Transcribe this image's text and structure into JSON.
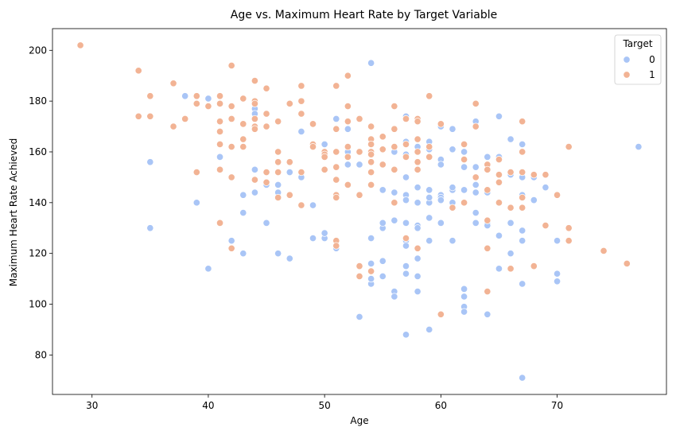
{
  "chart_data": {
    "type": "scatter",
    "title": "Age vs. Maximum Heart Rate by Target Variable",
    "xlabel": "Age",
    "ylabel": "Maximum Heart Rate Achieved",
    "xlim": [
      26.6,
      79.4
    ],
    "ylim": [
      64.45,
      208.55
    ],
    "xticks": [
      30,
      40,
      50,
      60,
      70
    ],
    "yticks": [
      80,
      100,
      120,
      140,
      160,
      180,
      200
    ],
    "grid": false,
    "legend": {
      "title": "Target",
      "placement": "top-right"
    },
    "series": [
      {
        "name": "0",
        "color": "#a9c5f6",
        "points": [
          [
            35,
            156
          ],
          [
            35,
            130
          ],
          [
            38,
            182
          ],
          [
            39,
            140
          ],
          [
            40,
            181
          ],
          [
            40,
            114
          ],
          [
            41,
            158
          ],
          [
            42,
            125
          ],
          [
            43,
            136
          ],
          [
            43,
            143
          ],
          [
            43,
            120
          ],
          [
            44,
            177
          ],
          [
            44,
            175
          ],
          [
            44,
            153
          ],
          [
            44,
            144
          ],
          [
            45,
            147
          ],
          [
            45,
            132
          ],
          [
            46,
            147
          ],
          [
            46,
            144
          ],
          [
            46,
            120
          ],
          [
            47,
            152
          ],
          [
            47,
            118
          ],
          [
            48,
            168
          ],
          [
            48,
            150
          ],
          [
            49,
            139
          ],
          [
            49,
            126
          ],
          [
            50,
            163
          ],
          [
            50,
            158
          ],
          [
            50,
            126
          ],
          [
            50,
            128
          ],
          [
            51,
            173
          ],
          [
            51,
            143
          ],
          [
            51,
            122
          ],
          [
            52,
            160
          ],
          [
            52,
            169
          ],
          [
            52,
            155
          ],
          [
            53,
            155
          ],
          [
            53,
            95
          ],
          [
            54,
            195
          ],
          [
            54,
            160
          ],
          [
            54,
            126
          ],
          [
            54,
            116
          ],
          [
            54,
            108
          ],
          [
            54,
            110
          ],
          [
            55,
            145
          ],
          [
            55,
            130
          ],
          [
            55,
            132
          ],
          [
            55,
            117
          ],
          [
            55,
            111
          ],
          [
            56,
            160
          ],
          [
            56,
            144
          ],
          [
            56,
            133
          ],
          [
            56,
            105
          ],
          [
            56,
            103
          ],
          [
            57,
            174
          ],
          [
            57,
            164
          ],
          [
            57,
            159
          ],
          [
            57,
            150
          ],
          [
            57,
            143
          ],
          [
            57,
            141
          ],
          [
            57,
            132
          ],
          [
            57,
            125
          ],
          [
            57,
            123
          ],
          [
            57,
            115
          ],
          [
            57,
            112
          ],
          [
            57,
            88
          ],
          [
            58,
            172
          ],
          [
            58,
            162
          ],
          [
            58,
            146
          ],
          [
            58,
            140
          ],
          [
            58,
            131
          ],
          [
            58,
            130
          ],
          [
            58,
            118
          ],
          [
            58,
            111
          ],
          [
            58,
            105
          ],
          [
            59,
            164
          ],
          [
            59,
            161
          ],
          [
            59,
            145
          ],
          [
            59,
            140
          ],
          [
            59,
            142
          ],
          [
            59,
            134
          ],
          [
            59,
            125
          ],
          [
            59,
            90
          ],
          [
            60,
            170
          ],
          [
            60,
            157
          ],
          [
            60,
            155
          ],
          [
            60,
            143
          ],
          [
            60,
            142
          ],
          [
            60,
            141
          ],
          [
            60,
            132
          ],
          [
            61,
            169
          ],
          [
            61,
            161
          ],
          [
            61,
            145
          ],
          [
            61,
            146
          ],
          [
            61,
            140
          ],
          [
            61,
            138
          ],
          [
            61,
            125
          ],
          [
            62,
            160
          ],
          [
            62,
            154
          ],
          [
            62,
            145
          ],
          [
            62,
            106
          ],
          [
            62,
            103
          ],
          [
            62,
            99
          ],
          [
            62,
            97
          ],
          [
            63,
            172
          ],
          [
            63,
            154
          ],
          [
            63,
            147
          ],
          [
            63,
            144
          ],
          [
            63,
            136
          ],
          [
            63,
            132
          ],
          [
            64,
            158
          ],
          [
            64,
            144
          ],
          [
            64,
            132
          ],
          [
            64,
            131
          ],
          [
            64,
            96
          ],
          [
            65,
            174
          ],
          [
            65,
            158
          ],
          [
            65,
            157
          ],
          [
            65,
            127
          ],
          [
            65,
            114
          ],
          [
            66,
            165
          ],
          [
            66,
            151
          ],
          [
            66,
            132
          ],
          [
            66,
            120
          ],
          [
            67,
            163
          ],
          [
            67,
            150
          ],
          [
            67,
            143
          ],
          [
            67,
            129
          ],
          [
            67,
            125
          ],
          [
            67,
            108
          ],
          [
            67,
            71
          ],
          [
            68,
            150
          ],
          [
            68,
            141
          ],
          [
            69,
            146
          ],
          [
            70,
            125
          ],
          [
            70,
            112
          ],
          [
            70,
            109
          ],
          [
            77,
            162
          ]
        ]
      },
      {
        "name": "1",
        "color": "#f2b394",
        "points": [
          [
            29,
            202
          ],
          [
            34,
            192
          ],
          [
            34,
            174
          ],
          [
            35,
            182
          ],
          [
            35,
            174
          ],
          [
            37,
            187
          ],
          [
            37,
            170
          ],
          [
            38,
            173
          ],
          [
            39,
            182
          ],
          [
            39,
            179
          ],
          [
            39,
            152
          ],
          [
            40,
            178
          ],
          [
            41,
            182
          ],
          [
            41,
            179
          ],
          [
            41,
            172
          ],
          [
            41,
            168
          ],
          [
            41,
            163
          ],
          [
            41,
            153
          ],
          [
            41,
            132
          ],
          [
            42,
            194
          ],
          [
            42,
            178
          ],
          [
            42,
            173
          ],
          [
            42,
            162
          ],
          [
            42,
            150
          ],
          [
            42,
            122
          ],
          [
            43,
            181
          ],
          [
            43,
            171
          ],
          [
            43,
            165
          ],
          [
            43,
            162
          ],
          [
            44,
            188
          ],
          [
            44,
            180
          ],
          [
            44,
            179
          ],
          [
            44,
            173
          ],
          [
            44,
            170
          ],
          [
            44,
            169
          ],
          [
            44,
            149
          ],
          [
            45,
            185
          ],
          [
            45,
            175
          ],
          [
            45,
            170
          ],
          [
            45,
            152
          ],
          [
            45,
            148
          ],
          [
            46,
            172
          ],
          [
            46,
            160
          ],
          [
            46,
            156
          ],
          [
            46,
            152
          ],
          [
            46,
            142
          ],
          [
            47,
            179
          ],
          [
            47,
            156
          ],
          [
            47,
            143
          ],
          [
            48,
            186
          ],
          [
            48,
            180
          ],
          [
            48,
            175
          ],
          [
            48,
            152
          ],
          [
            48,
            139
          ],
          [
            49,
            171
          ],
          [
            49,
            163
          ],
          [
            49,
            162
          ],
          [
            50,
            160
          ],
          [
            50,
            159
          ],
          [
            50,
            158
          ],
          [
            50,
            153
          ],
          [
            51,
            186
          ],
          [
            51,
            169
          ],
          [
            51,
            160
          ],
          [
            51,
            154
          ],
          [
            51,
            149
          ],
          [
            51,
            143
          ],
          [
            51,
            142
          ],
          [
            51,
            125
          ],
          [
            51,
            123
          ],
          [
            52,
            190
          ],
          [
            52,
            178
          ],
          [
            52,
            172
          ],
          [
            52,
            162
          ],
          [
            52,
            158
          ],
          [
            52,
            147
          ],
          [
            53,
            173
          ],
          [
            53,
            160
          ],
          [
            53,
            143
          ],
          [
            53,
            115
          ],
          [
            53,
            111
          ],
          [
            54,
            170
          ],
          [
            54,
            165
          ],
          [
            54,
            163
          ],
          [
            54,
            160
          ],
          [
            54,
            159
          ],
          [
            54,
            156
          ],
          [
            54,
            152
          ],
          [
            54,
            147
          ],
          [
            54,
            113
          ],
          [
            55,
            166
          ],
          [
            55,
            161
          ],
          [
            55,
            155
          ],
          [
            56,
            178
          ],
          [
            56,
            169
          ],
          [
            56,
            162
          ],
          [
            56,
            153
          ],
          [
            56,
            140
          ],
          [
            57,
            173
          ],
          [
            57,
            163
          ],
          [
            57,
            158
          ],
          [
            57,
            126
          ],
          [
            58,
            173
          ],
          [
            58,
            172
          ],
          [
            58,
            165
          ],
          [
            58,
            160
          ],
          [
            58,
            156
          ],
          [
            58,
            153
          ],
          [
            58,
            122
          ],
          [
            59,
            182
          ],
          [
            59,
            162
          ],
          [
            59,
            158
          ],
          [
            60,
            171
          ],
          [
            60,
            96
          ],
          [
            61,
            138
          ],
          [
            62,
            163
          ],
          [
            62,
            157
          ],
          [
            62,
            140
          ],
          [
            63,
            179
          ],
          [
            63,
            170
          ],
          [
            63,
            150
          ],
          [
            64,
            155
          ],
          [
            64,
            153
          ],
          [
            64,
            145
          ],
          [
            64,
            133
          ],
          [
            64,
            122
          ],
          [
            64,
            105
          ],
          [
            65,
            157
          ],
          [
            65,
            151
          ],
          [
            65,
            148
          ],
          [
            65,
            140
          ],
          [
            66,
            152
          ],
          [
            66,
            138
          ],
          [
            66,
            114
          ],
          [
            67,
            172
          ],
          [
            67,
            160
          ],
          [
            67,
            152
          ],
          [
            67,
            142
          ],
          [
            67,
            138
          ],
          [
            68,
            151
          ],
          [
            68,
            115
          ],
          [
            69,
            151
          ],
          [
            69,
            131
          ],
          [
            70,
            143
          ],
          [
            71,
            162
          ],
          [
            71,
            130
          ],
          [
            71,
            125
          ],
          [
            74,
            121
          ],
          [
            76,
            116
          ]
        ]
      }
    ]
  }
}
